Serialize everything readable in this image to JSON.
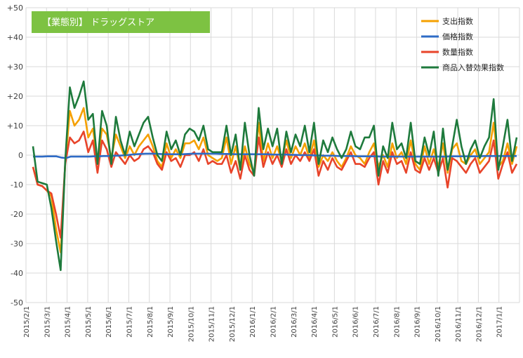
{
  "chart_data": {
    "type": "line",
    "title": "【業態別】 ドラッグストア",
    "title_bg": "#7dc242",
    "ylim": [
      -50,
      50
    ],
    "ytick_labels": [
      "+50",
      "+40",
      "+30",
      "+20",
      "+10",
      "0",
      "-10",
      "-20",
      "-30",
      "-40",
      "-50"
    ],
    "x_tick_labels": [
      "2015/2/1",
      "2015/3/1",
      "2015/4/1",
      "2015/5/1",
      "2015/6/1",
      "2015/7/1",
      "2015/8/1",
      "2015/9/1",
      "2015/10/1",
      "2015/11/1",
      "2015/12/1",
      "2016/1/1",
      "2016/2/1",
      "2016/3/1",
      "2016/4/1",
      "2016/5/1",
      "2016/6/1",
      "2016/7/1",
      "2016/8/1",
      "2016/9/1",
      "2016/10/1",
      "2016/11/1",
      "2016/12/1",
      "2017/1/1"
    ],
    "legend_position": "top-right",
    "grid": true,
    "series": [
      {
        "name": "支出指数",
        "color": "#f5a000",
        "values": [
          -4,
          -10,
          -10.5,
          -12,
          -14,
          -25,
          -33,
          -3,
          15,
          10,
          12,
          16,
          6,
          9,
          -2,
          9,
          7,
          -1,
          7,
          3,
          -1,
          3,
          0,
          3,
          5,
          7,
          3,
          -2,
          -4,
          4,
          -1,
          2,
          -1,
          4,
          4,
          5,
          2,
          6,
          0,
          -1,
          -2,
          -1,
          6,
          -3,
          3,
          -5,
          3,
          -3,
          -6,
          11,
          -2,
          4,
          -1,
          3,
          -2,
          5,
          -1,
          3,
          0,
          4,
          -1,
          5,
          -4,
          0,
          -2,
          1,
          -2,
          -4,
          -1,
          3,
          0,
          -1,
          -3,
          1,
          4,
          -4,
          0,
          -4,
          4,
          -1,
          1,
          -3,
          5,
          -3,
          -5,
          3,
          -3,
          2,
          -4,
          4,
          -6,
          2,
          4,
          -2,
          -3,
          0,
          2,
          -3,
          -1,
          1,
          11,
          -4,
          -2,
          4,
          -3,
          3
        ]
      },
      {
        "name": "価格指数",
        "color": "#2e6bc6",
        "values": [
          -0.5,
          -0.5,
          -0.5,
          -0.4,
          -0.4,
          -0.4,
          -0.8,
          -1,
          -0.5,
          -0.5,
          -0.5,
          -0.5,
          -0.5,
          -0.4,
          -0.4,
          -0.3,
          -0.3,
          -0.2,
          -0.2,
          -0.1,
          0,
          0.2,
          0.3,
          0.4,
          0.5,
          0.5,
          0.5,
          0.4,
          0.3,
          0.3,
          0.3,
          0.3,
          0.3,
          0.4,
          0.5,
          0.5,
          0.5,
          0.5,
          0.5,
          0.5,
          0.4,
          0.4,
          0.4,
          0.3,
          0.3,
          0.3,
          0.3,
          0.3,
          0.3,
          0.3,
          0.3,
          0.2,
          0.2,
          0.2,
          0.2,
          0.1,
          0.1,
          0,
          0,
          0,
          -0.1,
          -0.1,
          -0.2,
          -0.2,
          -0.2,
          -0.3,
          -0.3,
          -0.3,
          -0.3,
          -0.4,
          -0.4,
          -0.4,
          -0.4,
          -0.4,
          -0.5,
          -0.5,
          -0.5,
          -0.5,
          -0.5,
          -0.5,
          -0.5,
          -0.5,
          -0.5,
          -0.5,
          -0.5,
          -0.5,
          -0.5,
          -0.5,
          -0.5,
          -0.4,
          -0.4,
          -0.4,
          -0.4,
          -0.4,
          -0.4,
          -0.4,
          -0.3,
          -0.3,
          -0.3,
          -0.3,
          -0.3,
          -0.3,
          -0.3,
          -0.3
        ]
      },
      {
        "name": "数量指数",
        "color": "#e8442a",
        "values": [
          -4,
          -10,
          -10.5,
          -12,
          -13,
          -20,
          -28,
          -3,
          6,
          4,
          5,
          8,
          1,
          5,
          -6,
          5,
          2,
          -4,
          1,
          -1,
          -3,
          0,
          -2,
          -1,
          2,
          3,
          1,
          -3,
          -5,
          1,
          -2,
          -1,
          -4,
          0,
          0,
          1,
          -2,
          2,
          -3,
          -2,
          -3,
          -3,
          0,
          -6,
          -2,
          -8,
          0,
          -5,
          -7,
          6,
          -4,
          1,
          -3,
          0,
          -4,
          2,
          -3,
          0,
          -2,
          1,
          -2,
          2,
          -7,
          -2,
          -5,
          -1,
          -4,
          -5,
          -2,
          1,
          -3,
          -3,
          -4,
          -1,
          1,
          -10,
          -2,
          -6,
          1,
          -3,
          -2,
          -6,
          1,
          -5,
          -6,
          -1,
          -5,
          -1,
          -6,
          -1,
          -11,
          -1,
          -2,
          -4,
          -6,
          -3,
          -1,
          -6,
          -4,
          -2,
          5,
          -8,
          -3,
          1,
          -6,
          -3
        ]
      },
      {
        "name": "商品入替効果指数",
        "color": "#1e7a3c",
        "values": [
          3,
          -9,
          -9.5,
          -10,
          -18,
          -29,
          -39,
          -2,
          23,
          16,
          20,
          25,
          12,
          14,
          -3,
          15,
          10,
          -3,
          13,
          5,
          0,
          8,
          3,
          7,
          11,
          13,
          6,
          0,
          -2,
          8,
          2,
          5,
          0,
          7,
          9,
          8,
          5,
          10,
          2,
          1,
          1,
          1,
          10,
          0,
          7,
          -5,
          11,
          0,
          -7,
          16,
          2,
          9,
          3,
          9,
          -3,
          8,
          1,
          7,
          3,
          10,
          1,
          11,
          -3,
          5,
          1,
          6,
          2,
          -1,
          2,
          8,
          3,
          2,
          6,
          6,
          10,
          -7,
          3,
          -1,
          11,
          2,
          4,
          -1,
          11,
          -2,
          -3,
          6,
          0,
          8,
          -7,
          9,
          -5,
          3,
          12,
          3,
          -3,
          2,
          5,
          -1,
          3,
          6,
          19,
          -5,
          3,
          12,
          -2,
          6
        ]
      }
    ]
  }
}
